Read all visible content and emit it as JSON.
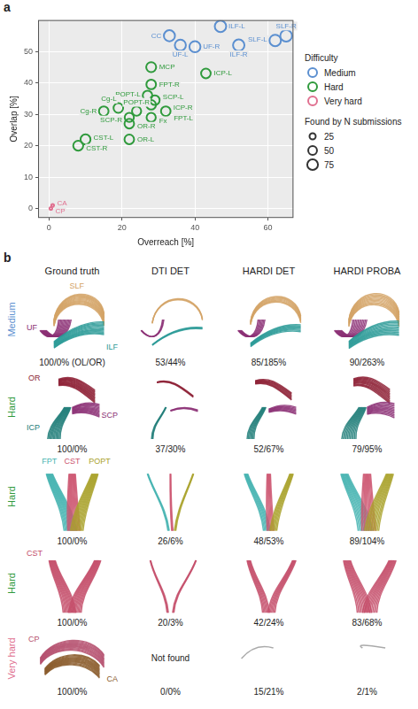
{
  "chart_data": {
    "type": "scatter",
    "panel_label": "a",
    "x_label": "Overreach [%]",
    "y_label": "Overlap [%]",
    "xlim": [
      -3,
      67
    ],
    "xticks": [
      0,
      20,
      40,
      60
    ],
    "ylim": [
      -3,
      60
    ],
    "yticks": [
      0,
      10,
      20,
      30,
      40,
      50
    ],
    "grid": true,
    "legend": "right",
    "legend_title": "Difficulty",
    "size_legend": {
      "title": "Found by N submissions",
      "values": [
        25,
        50,
        75
      ]
    },
    "series": [
      {
        "name": "Medium",
        "color": "#5b8fd0",
        "labels": [
          "ILF-L",
          "CC",
          "SLF-R",
          "SLF-L",
          "ILF-R",
          "UF-L",
          "UF-R"
        ],
        "x": [
          47,
          33,
          65,
          62,
          52,
          36,
          40
        ],
        "y": [
          58,
          55,
          55,
          53.5,
          52,
          52,
          51.5
        ],
        "sizes": [
          85,
          80,
          90,
          85,
          85,
          80,
          80
        ]
      },
      {
        "name": "Hard",
        "color": "#2f9a3c",
        "labels": [
          "MCP",
          "ICP-L",
          "FPT-R",
          "POPT-L",
          "SCP-L",
          "ICP-R",
          "FPT-L",
          "Fx",
          "OR-R",
          "OR-L",
          "Cg-L",
          "Cg-R",
          "SCP-R",
          "POPT-R",
          "CST-L",
          "CST-R"
        ],
        "x": [
          28,
          43,
          28,
          27,
          29,
          28,
          32,
          28,
          22,
          22,
          19,
          15,
          22,
          24,
          10,
          8
        ],
        "y": [
          45,
          43,
          39.5,
          36,
          34.5,
          33,
          31,
          29,
          27,
          22,
          32,
          31,
          29,
          31,
          22,
          20
        ],
        "sizes": [
          65,
          60,
          60,
          60,
          60,
          60,
          60,
          55,
          60,
          60,
          60,
          60,
          55,
          55,
          65,
          65
        ]
      },
      {
        "name": "Very hard",
        "color": "#e07090",
        "labels": [
          "CA",
          "CP"
        ],
        "x": [
          1,
          0.5
        ],
        "y": [
          1,
          0
        ],
        "sizes": [
          5,
          5
        ]
      }
    ]
  },
  "panel_b": {
    "panel_label": "b",
    "columns": [
      "Ground truth",
      "DTI DET",
      "HARDI DET",
      "HARDI PROBA"
    ],
    "rows": [
      {
        "difficulty": "Medium",
        "color": "#5b8fd0",
        "tracts": [
          {
            "name": "SLF",
            "color": "#d4a366"
          },
          {
            "name": "UF",
            "color": "#8b2f74"
          },
          {
            "name": "ILF",
            "color": "#2a9a96"
          }
        ],
        "cells": [
          {
            "caption": "100/0% (OL/OR)"
          },
          {
            "caption": "53/44%"
          },
          {
            "caption": "85/185%"
          },
          {
            "caption": "90/263%"
          }
        ]
      },
      {
        "difficulty": "Hard",
        "color": "#2f9a3c",
        "tracts": [
          {
            "name": "OR",
            "color": "#8c1d33"
          },
          {
            "name": "SCP",
            "color": "#8b2f74"
          },
          {
            "name": "ICP",
            "color": "#1e7c78"
          }
        ],
        "cells": [
          {
            "caption": "100/0%"
          },
          {
            "caption": "37/30%"
          },
          {
            "caption": "52/67%"
          },
          {
            "caption": "79/95%"
          }
        ]
      },
      {
        "difficulty": "Hard",
        "color": "#2f9a3c",
        "tracts": [
          {
            "name": "FPT",
            "color": "#44b3b0"
          },
          {
            "name": "CST",
            "color": "#cc5570"
          },
          {
            "name": "POPT",
            "color": "#a9a22c"
          }
        ],
        "cells": [
          {
            "caption": "100/0%"
          },
          {
            "caption": "26/6%"
          },
          {
            "caption": "48/53%"
          },
          {
            "caption": "89/104%"
          }
        ]
      },
      {
        "difficulty": "Hard",
        "color": "#2f9a3c",
        "tracts": [
          {
            "name": "CST",
            "color": "#c44d6a"
          }
        ],
        "cells": [
          {
            "caption": "100/0%"
          },
          {
            "caption": "20/3%"
          },
          {
            "caption": "42/24%"
          },
          {
            "caption": "83/68%"
          }
        ]
      },
      {
        "difficulty": "Very hard",
        "color": "#e07090",
        "tracts": [
          {
            "name": "CP",
            "color": "#b5506e"
          },
          {
            "name": "CA",
            "color": "#8a5a2a"
          }
        ],
        "cells": [
          {
            "caption": "100/0%"
          },
          {
            "note": "Not found",
            "caption": "0/0%"
          },
          {
            "caption": "15/21%"
          },
          {
            "caption": "2/1%"
          }
        ]
      }
    ]
  }
}
